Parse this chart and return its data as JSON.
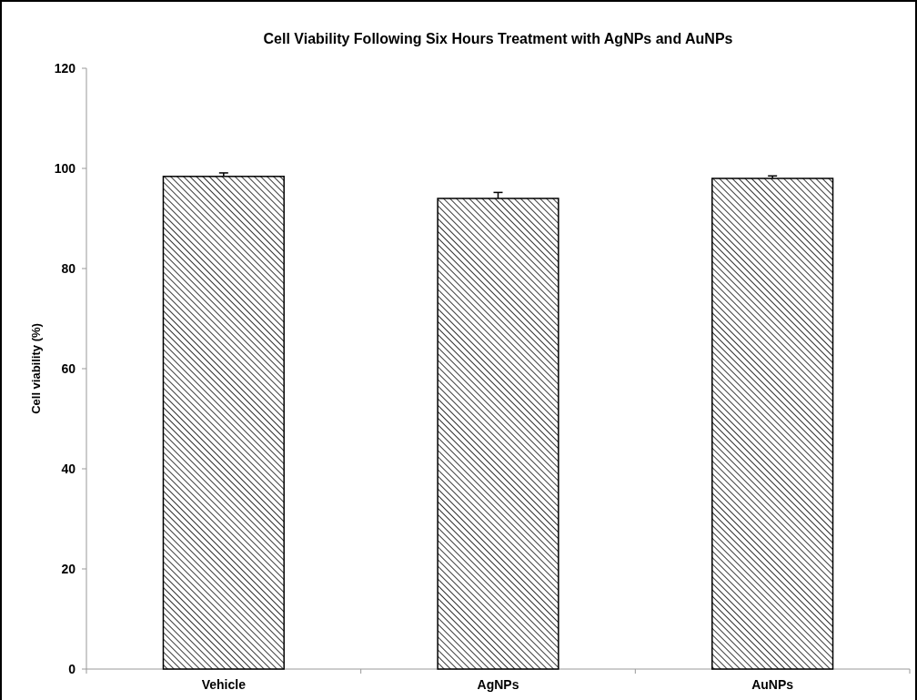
{
  "chart_data": {
    "type": "bar",
    "title": "Cell Viability Following Six Hours Treatment with AgNPs and AuNPs",
    "ylabel": "Cell viability (%)",
    "categories": [
      "Vehicle",
      "AgNPs",
      "AuNPs"
    ],
    "series": [
      {
        "color": "#000000",
        "values": [
          98.4,
          94.0,
          98.0
        ],
        "errors": [
          0.7,
          1.2,
          0.5
        ]
      }
    ],
    "ylim": [
      0,
      120
    ],
    "yticks": [
      0,
      20,
      40,
      60,
      80,
      100,
      120
    ],
    "grid": false
  }
}
